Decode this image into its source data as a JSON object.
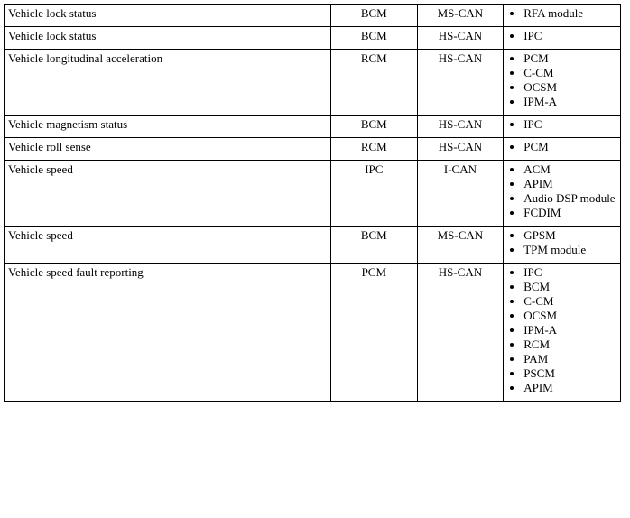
{
  "table": {
    "border_color": "#000000",
    "background_color": "#ffffff",
    "text_color": "#000000",
    "font_family": "Times New Roman",
    "font_size_pt": 10,
    "column_widths_pct": [
      53,
      14,
      14,
      19
    ],
    "column_align": [
      "left",
      "center",
      "center",
      "left"
    ],
    "rows": [
      {
        "name": "Vehicle lock status",
        "source": "BCM",
        "bus": "MS-CAN",
        "dest": [
          "RFA module"
        ]
      },
      {
        "name": "Vehicle lock status",
        "source": "BCM",
        "bus": "HS-CAN",
        "dest": [
          "IPC"
        ]
      },
      {
        "name": "Vehicle longitudinal acceleration",
        "source": "RCM",
        "bus": "HS-CAN",
        "dest": [
          "PCM",
          "C-CM",
          "OCSM",
          "IPM-A"
        ]
      },
      {
        "name": "Vehicle magnetism status",
        "source": "BCM",
        "bus": "HS-CAN",
        "dest": [
          "IPC"
        ]
      },
      {
        "name": "Vehicle roll sense",
        "source": "RCM",
        "bus": "HS-CAN",
        "dest": [
          "PCM"
        ]
      },
      {
        "name": "Vehicle speed",
        "source": "IPC",
        "bus": "I-CAN",
        "dest": [
          "ACM",
          "APIM",
          "Audio DSP module",
          "FCDIM"
        ]
      },
      {
        "name": "Vehicle speed",
        "source": "BCM",
        "bus": "MS-CAN",
        "dest": [
          "GPSM",
          "TPM module"
        ]
      },
      {
        "name": "Vehicle speed fault reporting",
        "source": "PCM",
        "bus": "HS-CAN",
        "dest": [
          "IPC",
          "BCM",
          "C-CM",
          "OCSM",
          "IPM-A",
          "RCM",
          "PAM",
          "PSCM",
          "APIM"
        ]
      }
    ]
  }
}
